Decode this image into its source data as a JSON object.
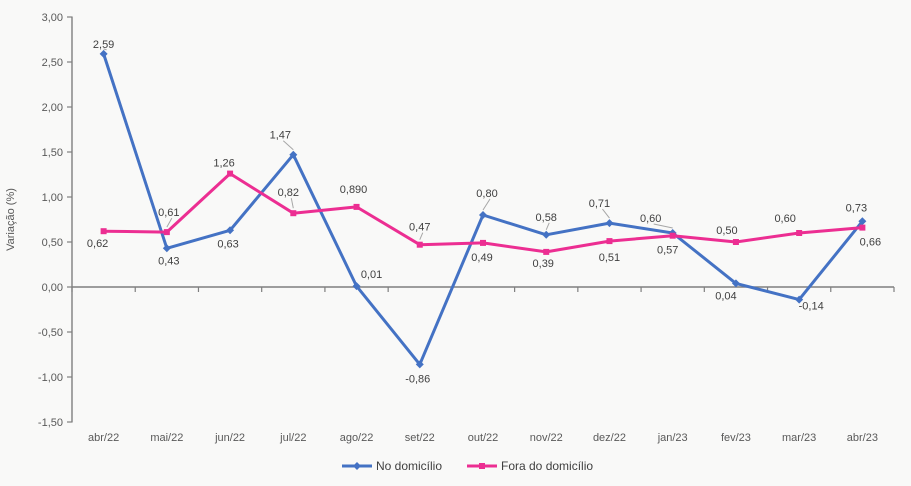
{
  "chart": {
    "background": "#F9F9F8",
    "axis_color": "#7F7F7F",
    "tick_label_color": "#595959",
    "data_label_color": "#404040",
    "leader_color": "#A6A6A6",
    "ylabel": "Variação (%)"
  },
  "chart_data": {
    "type": "line",
    "title": "",
    "xlabel": "",
    "ylabel": "Variação (%)",
    "ylim": [
      -1.5,
      3.0
    ],
    "ytick_step": 0.5,
    "ytick_labels": [
      "3,00",
      "2,50",
      "2,00",
      "1,50",
      "1,00",
      "0,50",
      "0,00",
      "-0,50",
      "-1,00",
      "-1,50"
    ],
    "grid": false,
    "legend_position": "bottom",
    "categories": [
      "abr/22",
      "mai/22",
      "jun/22",
      "jul/22",
      "ago/22",
      "set/22",
      "out/22",
      "nov/22",
      "dez/22",
      "jan/23",
      "fev/23",
      "mar/23",
      "abr/23"
    ],
    "series": [
      {
        "name": "No domicílio",
        "color": "#4472C4",
        "marker": "diamond",
        "values": [
          2.59,
          0.43,
          0.63,
          1.47,
          0.01,
          -0.86,
          0.8,
          0.58,
          0.71,
          0.6,
          0.04,
          -0.14,
          0.73
        ],
        "labels": [
          "2,59",
          "0,43",
          "0,63",
          "1,47",
          "0,01",
          "-0,86",
          "0,80",
          "0,58",
          "0,71",
          "0,60",
          "0,04",
          "-0,14",
          "0,73"
        ],
        "label_pos": [
          "above",
          "below",
          "below",
          "above",
          "above",
          "below",
          "above",
          "above",
          "above",
          "above",
          "below",
          "below",
          "above"
        ],
        "label_dx": [
          0,
          2,
          -2,
          -13,
          15,
          -2,
          4,
          0,
          -10,
          -22,
          -10,
          12,
          -6
        ],
        "label_dy": [
          2,
          0,
          1,
          -8,
          0,
          2,
          -10,
          -6,
          -8,
          -3,
          0,
          -6,
          -2
        ],
        "label_leader": [
          true,
          false,
          false,
          true,
          false,
          false,
          true,
          true,
          true,
          true,
          false,
          false,
          false
        ]
      },
      {
        "name": "Fora do domicílio",
        "color": "#EC2E92",
        "marker": "square",
        "values": [
          0.62,
          0.61,
          1.26,
          0.82,
          0.89,
          0.47,
          0.49,
          0.39,
          0.51,
          0.57,
          0.5,
          0.6,
          0.66
        ],
        "labels": [
          "0,62",
          "0,61",
          "1,26",
          "0,82",
          "0,890",
          "0,47",
          "0,49",
          "0,39",
          "0,51",
          "0,57",
          "0,50",
          "0,60",
          "0,66"
        ],
        "label_pos": [
          "below",
          "above",
          "above",
          "above",
          "above",
          "above",
          "below",
          "below",
          "below",
          "below",
          "above",
          "above",
          "below"
        ],
        "label_dx": [
          -6,
          2,
          -6,
          -5,
          -3,
          0,
          -1,
          -3,
          0,
          -5,
          -9,
          -14,
          8
        ],
        "label_dy": [
          0,
          -8,
          1,
          -9,
          -6,
          -6,
          2,
          -1,
          4,
          2,
          0,
          -3,
          2
        ],
        "label_leader": [
          false,
          true,
          false,
          true,
          false,
          true,
          false,
          false,
          false,
          false,
          false,
          false,
          false
        ]
      }
    ]
  }
}
